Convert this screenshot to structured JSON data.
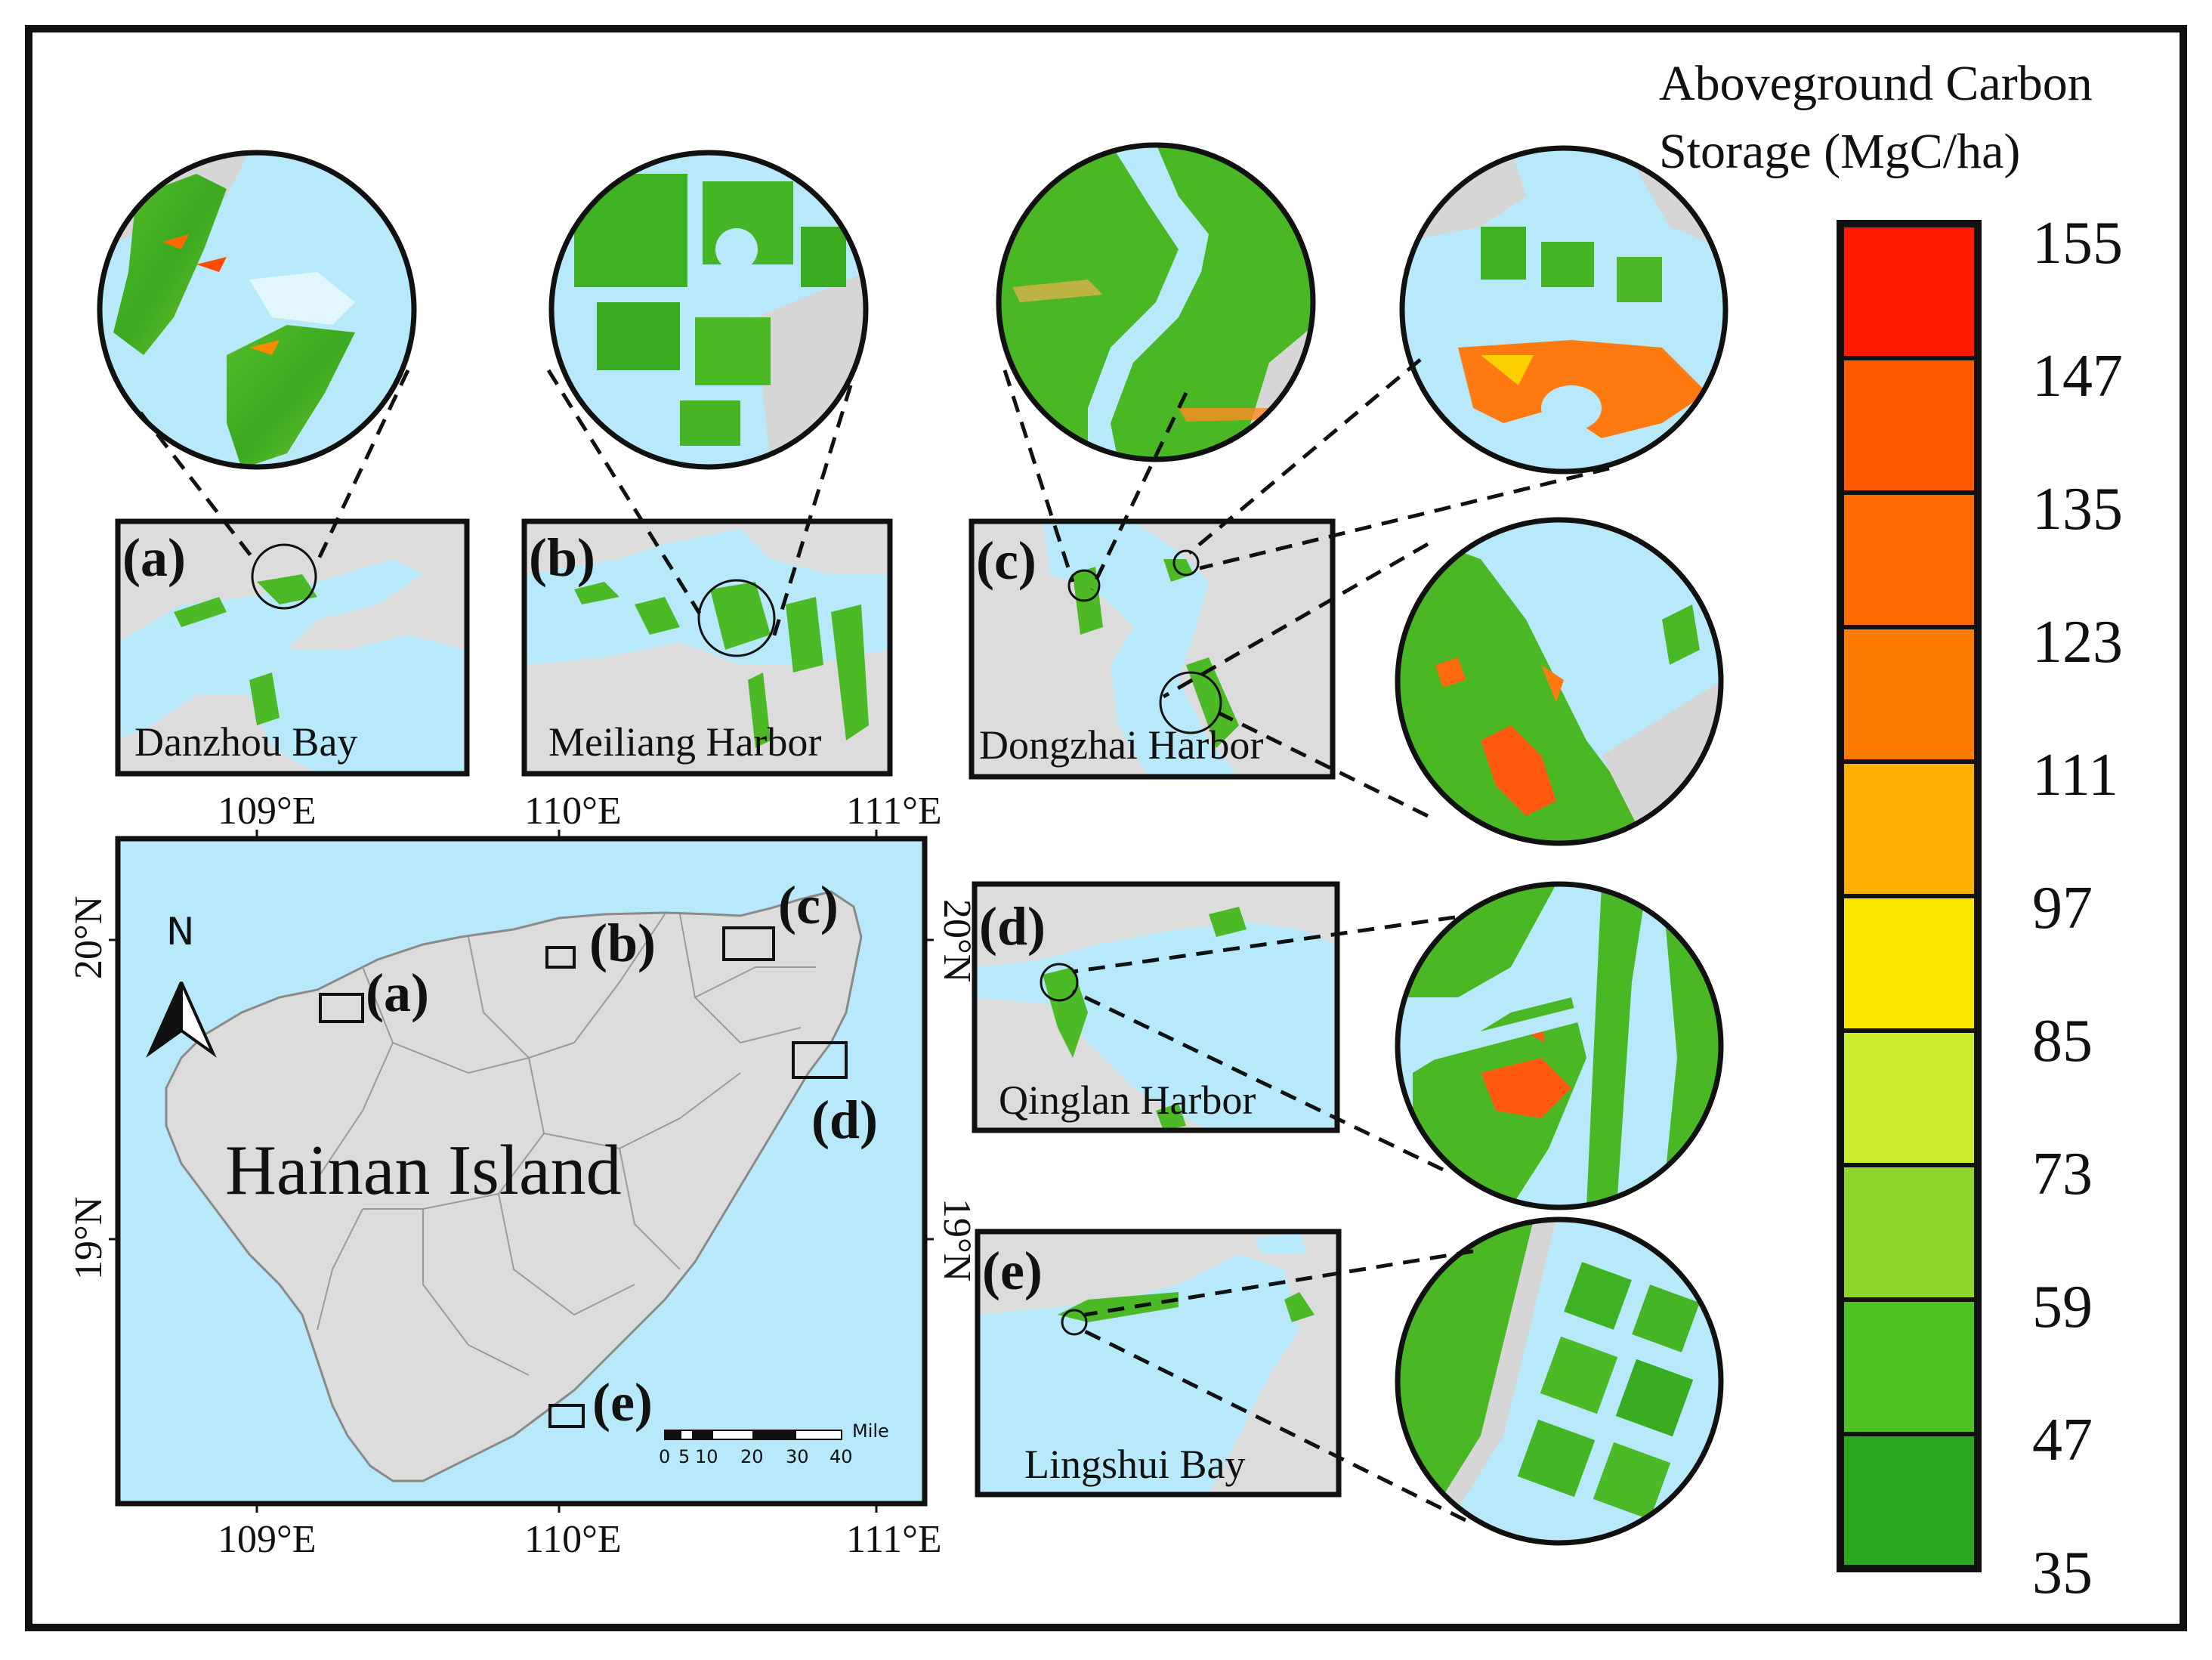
{
  "legend": {
    "title_line1": "Aboveground Carbon",
    "title_line2": "Storage (MgC/ha)",
    "ticks": [
      "155",
      "147",
      "135",
      "123",
      "111",
      "97",
      "85",
      "73",
      "59",
      "47",
      "35"
    ],
    "band_colors": [
      "#ff1a00",
      "#ff5a00",
      "#ff6a00",
      "#ff7a00",
      "#ffb000",
      "#ffe600",
      "#ccec30",
      "#8ed82a",
      "#4cc225",
      "#2aa81e"
    ]
  },
  "main_map": {
    "title": "Hainan Island",
    "north_label": "N",
    "top_lon_labels": [
      "109°E",
      "110°E",
      "111°E"
    ],
    "bottom_lon_labels": [
      "109°E",
      "110°E",
      "111°E"
    ],
    "left_lat_labels": [
      "20°N",
      "19°N"
    ],
    "right_lat_labels": [
      "20°N",
      "19°N"
    ],
    "scale_unit": "Mile",
    "scale_ticks": [
      "0",
      "5",
      "10",
      "20",
      "30",
      "40"
    ],
    "site_markers": [
      "(a)",
      "(b)",
      "(c)",
      "(d)",
      "(e)"
    ],
    "colors": {
      "sea": "#b7e9fa",
      "land": "#dcdcdc",
      "boundary": "#9a9a9a"
    }
  },
  "insets": [
    {
      "letter": "(a)",
      "name": "Danzhou Bay"
    },
    {
      "letter": "(b)",
      "name": "Meiliang Harbor"
    },
    {
      "letter": "(c)",
      "name": "Dongzhai Harbor"
    },
    {
      "letter": "(d)",
      "name": "Qinglan Harbor"
    },
    {
      "letter": "(e)",
      "name": "Lingshui Bay"
    }
  ]
}
